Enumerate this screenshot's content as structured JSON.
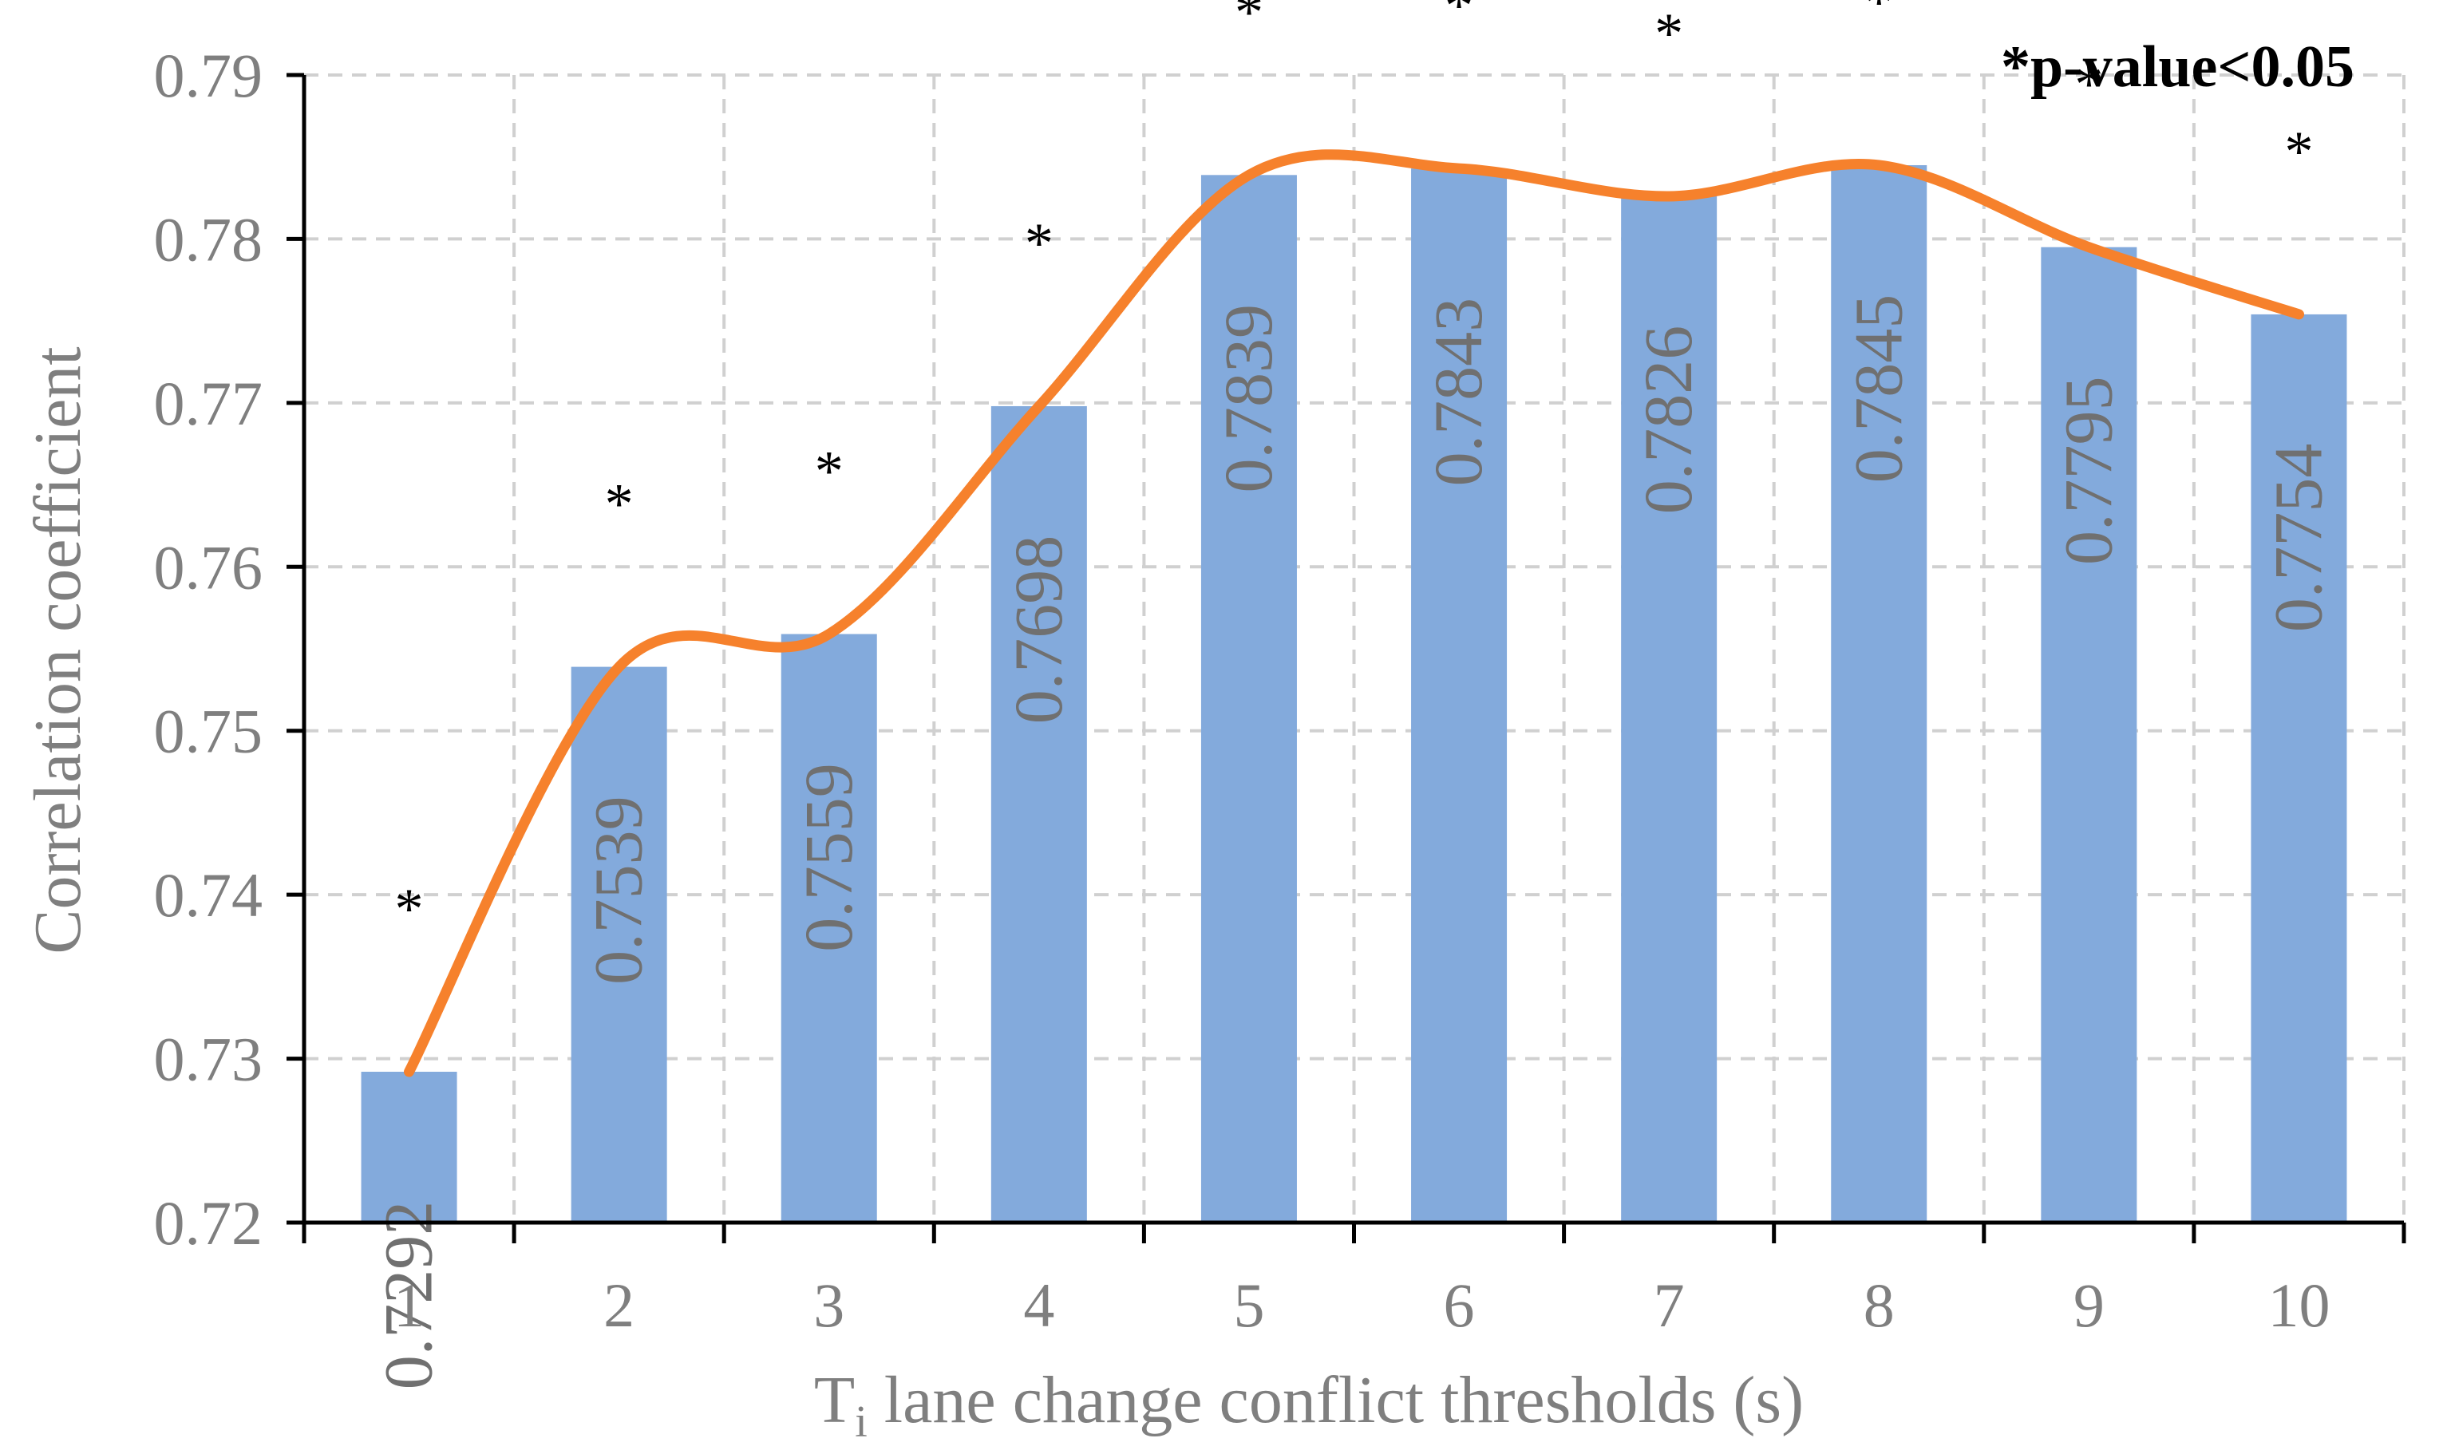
{
  "chart_data": {
    "type": "bar",
    "categories": [
      "1",
      "2",
      "3",
      "4",
      "5",
      "6",
      "7",
      "8",
      "9",
      "10"
    ],
    "values": [
      0.7292,
      0.7539,
      0.7559,
      0.7698,
      0.7839,
      0.7843,
      0.7826,
      0.7845,
      0.7795,
      0.7754
    ],
    "data_labels": [
      "0.7292",
      "0.7539",
      "0.7559",
      "0.7698",
      "0.7839",
      "0.7843",
      "0.7826",
      "0.7845",
      "0.7795",
      "0.7754"
    ],
    "significance_markers": [
      "*",
      "*",
      "*",
      "*",
      "*",
      "*",
      "*",
      "*",
      "*",
      "*"
    ],
    "trend_line": {
      "type": "smoothed line",
      "values": [
        0.7292,
        0.7539,
        0.7559,
        0.7698,
        0.7839,
        0.7843,
        0.7826,
        0.7845,
        0.7795,
        0.7754
      ]
    },
    "xlabel_main": "T",
    "xlabel_subscript": "i",
    "xlabel_rest": " lane change conflict thresholds (s)",
    "ylabel": "Correlation coefficient",
    "ylim": [
      0.72,
      0.79
    ],
    "yticks": [
      "0.72",
      "0.73",
      "0.74",
      "0.75",
      "0.76",
      "0.77",
      "0.78",
      "0.79"
    ],
    "grid": true,
    "annotation": "*p-value<0.05",
    "colors": {
      "bar": "#83aadc",
      "line": "#f6812c",
      "grid": "#d0d0d0",
      "text": "#7f7f7f"
    }
  }
}
